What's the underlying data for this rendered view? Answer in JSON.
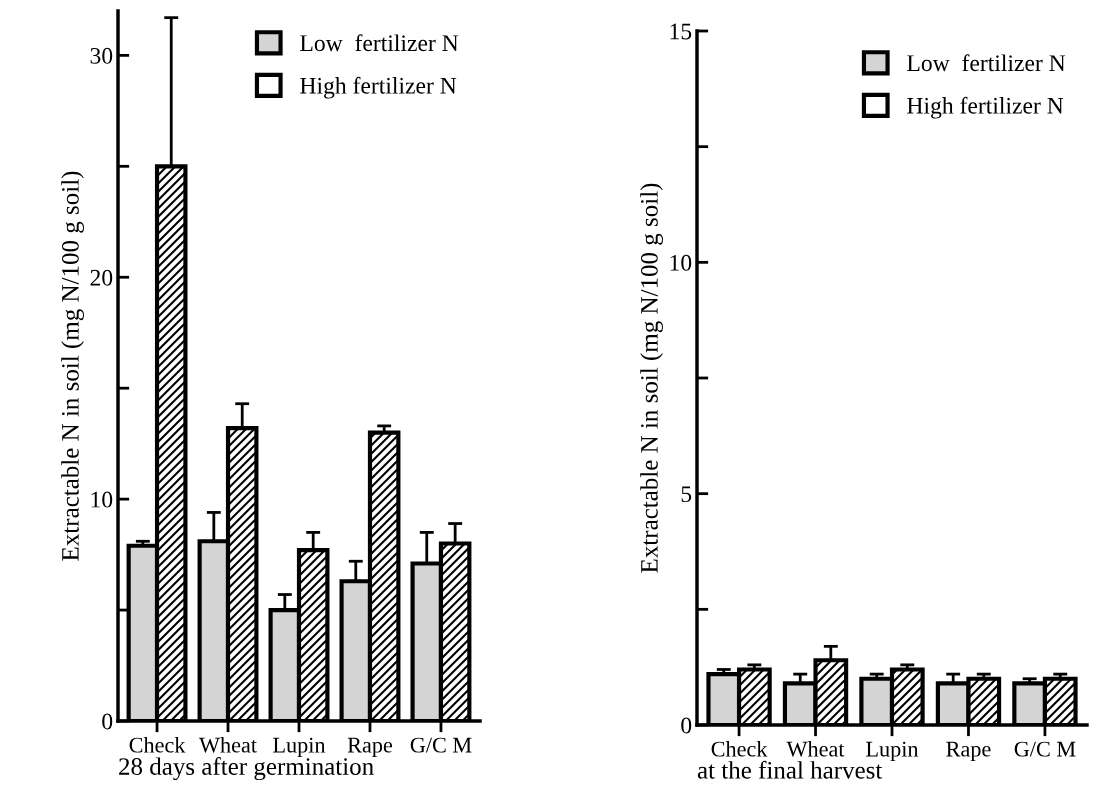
{
  "chart_data": [
    {
      "type": "bar",
      "categories": [
        "Check",
        "Wheat",
        "Lupin",
        "Rape",
        "G/C M"
      ],
      "xlabel": "28 days after germination",
      "ylabel": "Extractable N in soil (mg N/100 g soil)",
      "series": [
        {
          "name": "Low  fertilizer N",
          "color": "#d4d4d4",
          "values": [
            7.9,
            8.1,
            5.0,
            6.3,
            7.1
          ],
          "errors": [
            0.2,
            1.3,
            0.7,
            0.9,
            1.4
          ]
        },
        {
          "name": "High fertilizer N",
          "color": "#ffffff",
          "values": [
            25.0,
            13.2,
            7.7,
            13.0,
            8.0
          ],
          "errors": [
            6.7,
            1.1,
            0.8,
            0.3,
            0.9
          ]
        }
      ],
      "ylim": [
        0,
        32
      ],
      "yticks": [
        0,
        {
          "value": 5,
          "label": null
        },
        10,
        {
          "value": 15,
          "label": null
        },
        20,
        {
          "value": 25,
          "label": null
        },
        30
      ],
      "legend": "top right",
      "grid": false
    },
    {
      "type": "bar",
      "categories": [
        "Check",
        "Wheat",
        "Lupin",
        "Rape",
        "G/C M"
      ],
      "xlabel": "at the final harvest",
      "ylabel": "Extractable N in soil (mg N/100 g soil)",
      "series": [
        {
          "name": "Low  fertilizer N",
          "color": "#d4d4d4",
          "values": [
            1.1,
            0.9,
            1.0,
            0.9,
            0.9
          ],
          "errors": [
            0.1,
            0.2,
            0.1,
            0.2,
            0.1
          ]
        },
        {
          "name": "High fertilizer N",
          "color": "#ffffff",
          "values": [
            1.2,
            1.4,
            1.2,
            1.0,
            1.0
          ],
          "errors": [
            0.1,
            0.3,
            0.1,
            0.1,
            0.1
          ]
        }
      ],
      "ylim": [
        0,
        15
      ],
      "yticks": [
        0,
        {
          "value": 2.5,
          "label": null
        },
        5,
        {
          "value": 7.5,
          "label": null
        },
        10,
        {
          "value": 12.5,
          "label": null
        },
        15
      ],
      "legend": "top right",
      "grid": false
    }
  ]
}
